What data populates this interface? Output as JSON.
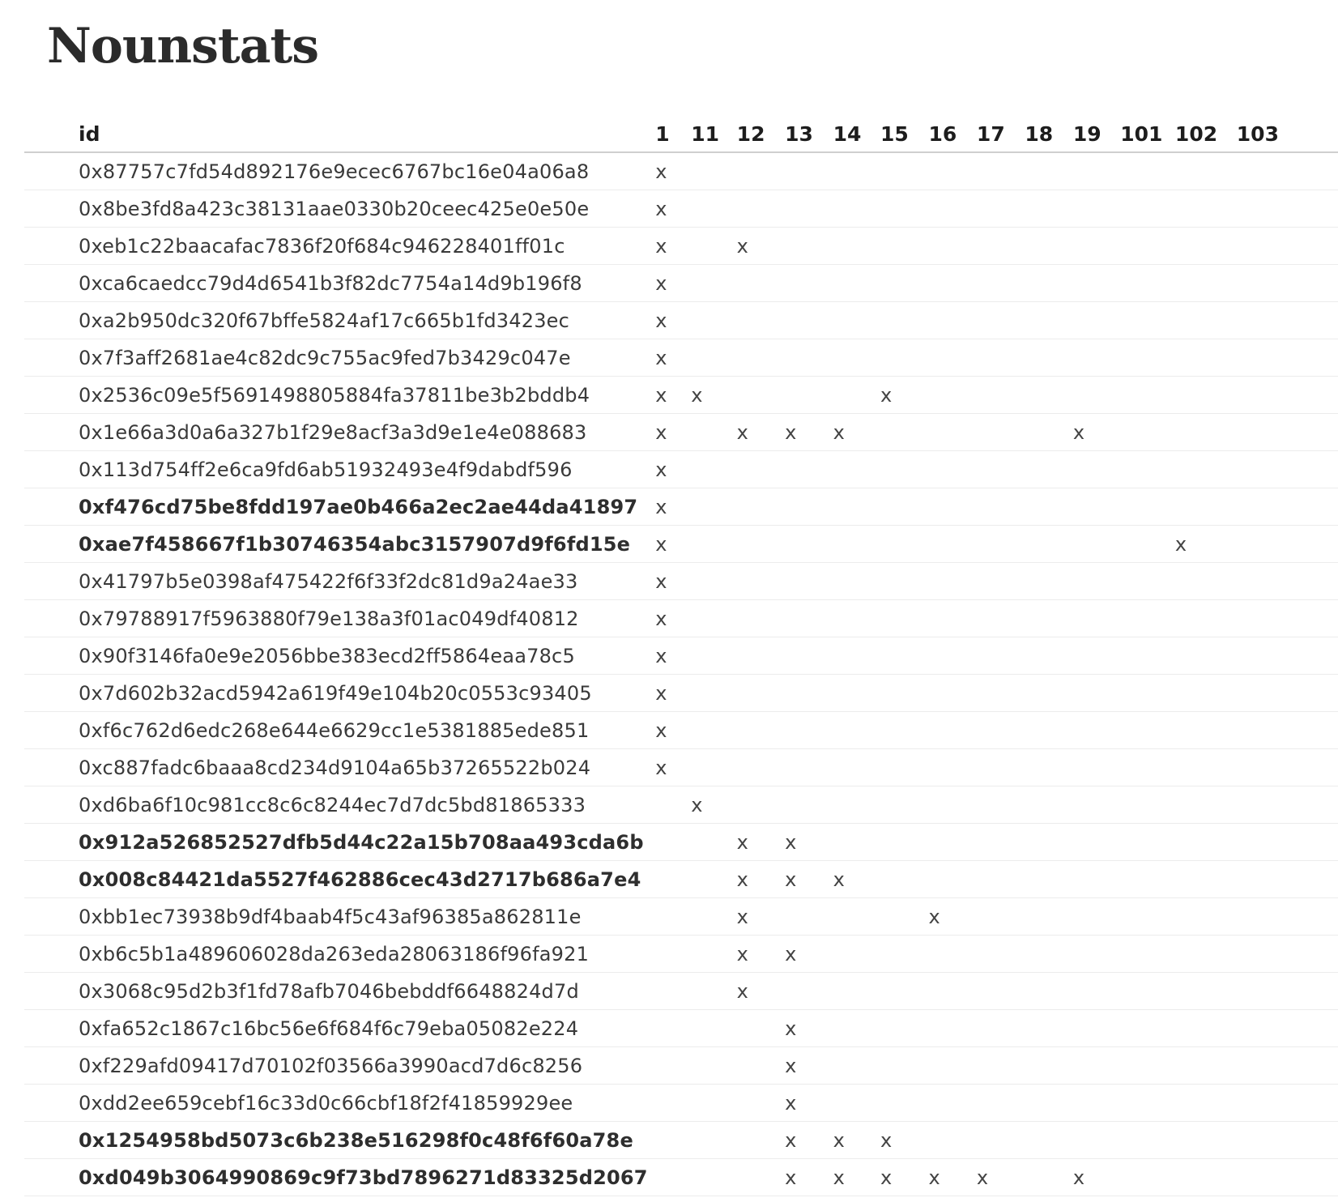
{
  "page": {
    "title": "Nounstats"
  },
  "table": {
    "id_header": "id",
    "columns": [
      "1",
      "11",
      "12",
      "13",
      "14",
      "15",
      "16",
      "17",
      "18",
      "19",
      "101",
      "102",
      "103"
    ],
    "rows": [
      {
        "id": "0x87757c7fd54d892176e9ecec6767bc16e04a06a8",
        "bold": false,
        "marks": [
          "1"
        ]
      },
      {
        "id": "0x8be3fd8a423c38131aae0330b20ceec425e0e50e",
        "bold": false,
        "marks": [
          "1"
        ]
      },
      {
        "id": "0xeb1c22baacafac7836f20f684c946228401ff01c",
        "bold": false,
        "marks": [
          "1",
          "12"
        ]
      },
      {
        "id": "0xca6caedcc79d4d6541b3f82dc7754a14d9b196f8",
        "bold": false,
        "marks": [
          "1"
        ]
      },
      {
        "id": "0xa2b950dc320f67bffe5824af17c665b1fd3423ec",
        "bold": false,
        "marks": [
          "1"
        ]
      },
      {
        "id": "0x7f3aff2681ae4c82dc9c755ac9fed7b3429c047e",
        "bold": false,
        "marks": [
          "1"
        ]
      },
      {
        "id": "0x2536c09e5f5691498805884fa37811be3b2bddb4",
        "bold": false,
        "marks": [
          "1",
          "11",
          "15"
        ]
      },
      {
        "id": "0x1e66a3d0a6a327b1f29e8acf3a3d9e1e4e088683",
        "bold": false,
        "marks": [
          "1",
          "12",
          "13",
          "14",
          "19"
        ]
      },
      {
        "id": "0x113d754ff2e6ca9fd6ab51932493e4f9dabdf596",
        "bold": false,
        "marks": [
          "1"
        ]
      },
      {
        "id": "0xf476cd75be8fdd197ae0b466a2ec2ae44da41897",
        "bold": true,
        "marks": [
          "1"
        ]
      },
      {
        "id": "0xae7f458667f1b30746354abc3157907d9f6fd15e",
        "bold": true,
        "marks": [
          "1",
          "102"
        ]
      },
      {
        "id": "0x41797b5e0398af475422f6f33f2dc81d9a24ae33",
        "bold": false,
        "marks": [
          "1"
        ]
      },
      {
        "id": "0x79788917f5963880f79e138a3f01ac049df40812",
        "bold": false,
        "marks": [
          "1"
        ]
      },
      {
        "id": "0x90f3146fa0e9e2056bbe383ecd2ff5864eaa78c5",
        "bold": false,
        "marks": [
          "1"
        ]
      },
      {
        "id": "0x7d602b32acd5942a619f49e104b20c0553c93405",
        "bold": false,
        "marks": [
          "1"
        ]
      },
      {
        "id": "0xf6c762d6edc268e644e6629cc1e5381885ede851",
        "bold": false,
        "marks": [
          "1"
        ]
      },
      {
        "id": "0xc887fadc6baaa8cd234d9104a65b37265522b024",
        "bold": false,
        "marks": [
          "1"
        ]
      },
      {
        "id": "0xd6ba6f10c981cc8c6c8244ec7d7dc5bd81865333",
        "bold": false,
        "marks": [
          "11"
        ]
      },
      {
        "id": "0x912a526852527dfb5d44c22a15b708aa493cda6b",
        "bold": true,
        "marks": [
          "12",
          "13"
        ]
      },
      {
        "id": "0x008c84421da5527f462886cec43d2717b686a7e4",
        "bold": true,
        "marks": [
          "12",
          "13",
          "14"
        ]
      },
      {
        "id": "0xbb1ec73938b9df4baab4f5c43af96385a862811e",
        "bold": false,
        "marks": [
          "12",
          "16"
        ]
      },
      {
        "id": "0xb6c5b1a489606028da263eda28063186f96fa921",
        "bold": false,
        "marks": [
          "12",
          "13"
        ]
      },
      {
        "id": "0x3068c95d2b3f1fd78afb7046bebddf6648824d7d",
        "bold": false,
        "marks": [
          "12"
        ]
      },
      {
        "id": "0xfa652c1867c16bc56e6f684f6c79eba05082e224",
        "bold": false,
        "marks": [
          "13"
        ]
      },
      {
        "id": "0xf229afd09417d70102f03566a3990acd7d6c8256",
        "bold": false,
        "marks": [
          "13"
        ]
      },
      {
        "id": "0xdd2ee659cebf16c33d0c66cbf18f2f41859929ee",
        "bold": false,
        "marks": [
          "13"
        ]
      },
      {
        "id": "0x1254958bd5073c6b238e516298f0c48f6f60a78e",
        "bold": true,
        "marks": [
          "13",
          "14",
          "15"
        ]
      },
      {
        "id": "0xd049b3064990869c9f73bd7896271d83325d2067",
        "bold": true,
        "marks": [
          "13",
          "14",
          "15",
          "16",
          "17",
          "19"
        ]
      }
    ],
    "mark_symbol": "x"
  }
}
